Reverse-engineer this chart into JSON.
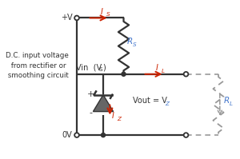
{
  "bg_color": "#ffffff",
  "line_color": "#333333",
  "red_color": "#cc2200",
  "blue_color": "#4477cc",
  "dashed_color": "#999999",
  "label_dc": "D.C. input voltage\n from rectifier or\n smoothing circuit",
  "label_pv": "+V",
  "label_0v": "0V",
  "label_rs": "R",
  "label_rs_sub": "S",
  "label_rl": "R",
  "label_rl_sub": "L",
  "label_is": "I",
  "label_is_sub": "S",
  "label_il": "I",
  "label_il_sub": "L",
  "label_iz": "I",
  "label_iz_sub": "Z",
  "label_vout": "Vout = V",
  "label_vout_sub": "Z",
  "label_plus": "+",
  "label_minus": "-"
}
